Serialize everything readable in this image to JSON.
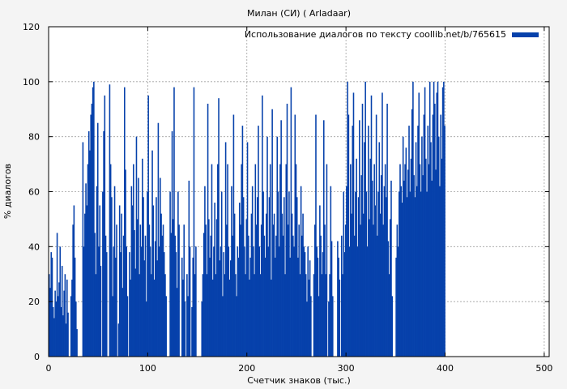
{
  "chart_data": {
    "type": "bar",
    "title": "Милан (СИ) ( Arladaar)",
    "xlabel": "Счетчик знаков (тыс.)",
    "ylabel": "% диалогов",
    "xlim": [
      0,
      505
    ],
    "ylim": [
      0,
      120
    ],
    "x_ticks": [
      "0",
      "100",
      "200",
      "300",
      "400",
      "500"
    ],
    "y_ticks": [
      "0",
      "20",
      "40",
      "60",
      "80",
      "100",
      "120"
    ],
    "grid": true,
    "legend_position": "top-right",
    "series": [
      {
        "name": "Использование диалогов по тексту coollib.net/b/765615",
        "color": "#0641ab",
        "x_step": 1,
        "values": [
          30,
          25,
          38,
          36,
          18,
          14,
          24,
          20,
          45,
          22,
          27,
          40,
          18,
          33,
          15,
          24,
          30,
          12,
          28,
          16,
          0,
          0,
          22,
          28,
          48,
          55,
          36,
          20,
          10,
          0,
          0,
          0,
          0,
          0,
          78,
          40,
          52,
          63,
          55,
          70,
          82,
          75,
          88,
          92,
          98,
          100,
          45,
          30,
          62,
          85,
          40,
          55,
          33,
          0,
          60,
          82,
          95,
          44,
          38,
          0,
          0,
          99,
          70,
          58,
          22,
          40,
          62,
          36,
          48,
          0,
          12,
          55,
          38,
          52,
          25,
          44,
          98,
          68,
          40,
          22,
          0,
          38,
          28,
          62,
          55,
          70,
          46,
          32,
          80,
          50,
          65,
          30,
          48,
          40,
          72,
          58,
          35,
          44,
          20,
          60,
          95,
          48,
          40,
          30,
          75,
          55,
          28,
          42,
          58,
          35,
          85,
          40,
          65,
          52,
          44,
          48,
          38,
          30,
          22,
          0,
          0,
          0,
          60,
          45,
          82,
          50,
          98,
          44,
          38,
          25,
          60,
          48,
          0,
          0,
          36,
          28,
          48,
          20,
          0,
          30,
          22,
          64,
          40,
          0,
          18,
          36,
          98,
          30,
          40,
          0,
          0,
          0,
          0,
          0,
          20,
          30,
          45,
          62,
          48,
          30,
          92,
          50,
          36,
          44,
          70,
          28,
          40,
          56,
          30,
          50,
          70,
          94,
          35,
          40,
          60,
          22,
          38,
          30,
          78,
          48,
          70,
          40,
          28,
          35,
          62,
          44,
          88,
          52,
          30,
          22,
          40,
          36,
          56,
          48,
          70,
          84,
          58,
          40,
          30,
          50,
          78,
          44,
          28,
          36,
          52,
          62,
          40,
          30,
          70,
          48,
          58,
          84,
          40,
          30,
          48,
          95,
          60,
          44,
          36,
          52,
          80,
          40,
          58,
          70,
          28,
          90,
          48,
          52,
          36,
          44,
          80,
          60,
          40,
          70,
          86,
          52,
          44,
          58,
          30,
          70,
          92,
          48,
          60,
          36,
          98,
          52,
          44,
          40,
          88,
          70,
          58,
          36,
          48,
          30,
          62,
          44,
          52,
          40,
          38,
          30,
          20,
          40,
          28,
          35,
          22,
          0,
          0,
          30,
          48,
          88,
          40,
          36,
          22,
          55,
          44,
          30,
          38,
          86,
          48,
          30,
          70,
          0,
          20,
          30,
          62,
          42,
          22,
          0,
          0,
          0,
          0,
          42,
          36,
          28,
          0,
          44,
          30,
          60,
          38,
          48,
          62,
          100,
          88,
          40,
          70,
          52,
          84,
          96,
          44,
          60,
          72,
          40,
          58,
          86,
          48,
          66,
          92,
          52,
          78,
          100,
          60,
          40,
          84,
          50,
          72,
          95,
          64,
          48,
          70,
          55,
          88,
          44,
          60,
          78,
          52,
          66,
          96,
          48,
          62,
          70,
          58,
          92,
          42,
          30,
          50,
          64,
          22,
          0,
          0,
          0,
          36,
          48,
          40,
          60,
          70,
          62,
          56,
          80,
          64,
          70,
          76,
          58,
          68,
          84,
          60,
          72,
          90,
          100,
          66,
          58,
          78,
          62,
          84,
          96,
          70,
          60,
          80,
          66,
          88,
          98,
          72,
          60,
          84,
          70,
          100,
          78,
          64,
          88,
          100,
          92,
          68,
          96,
          100,
          80,
          62,
          88,
          72,
          98,
          100,
          84
        ]
      }
    ]
  }
}
